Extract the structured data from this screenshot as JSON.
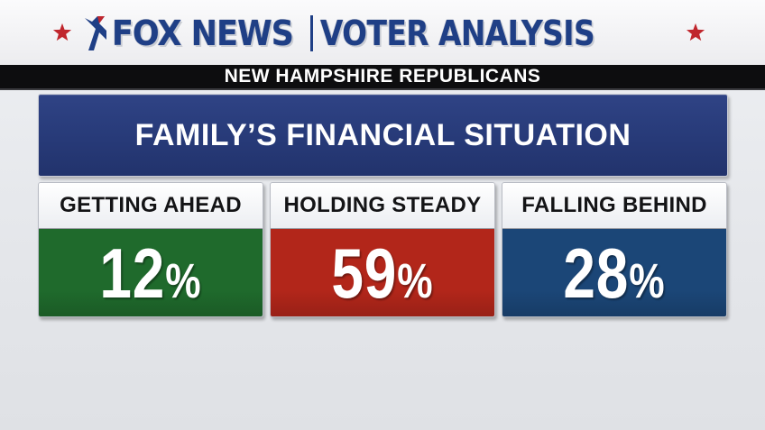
{
  "header": {
    "brand": "FOX NEWS",
    "program": "VOTER ANALYSIS",
    "subtitle": "NEW HAMPSHIRE REPUBLICANS"
  },
  "question": "FAMILY’S FINANCIAL SITUATION",
  "colors": {
    "getting_ahead": "#1f6a2c",
    "holding_steady": "#b2261a",
    "falling_behind": "#1b4677",
    "brand_blue": "#1f3f86",
    "star_red": "#c0262d"
  },
  "icons": [
    "star-icon",
    "fox-news-logo-icon"
  ],
  "chart_data": {
    "type": "table",
    "title": "FAMILY’S FINANCIAL SITUATION",
    "subtitle": "NEW HAMPSHIRE REPUBLICANS",
    "categories": [
      "GETTING AHEAD",
      "HOLDING STEADY",
      "FALLING BEHIND"
    ],
    "values": [
      12,
      59,
      28
    ],
    "unit": "%",
    "colors": [
      "#1f6a2c",
      "#b2261a",
      "#1b4677"
    ]
  }
}
